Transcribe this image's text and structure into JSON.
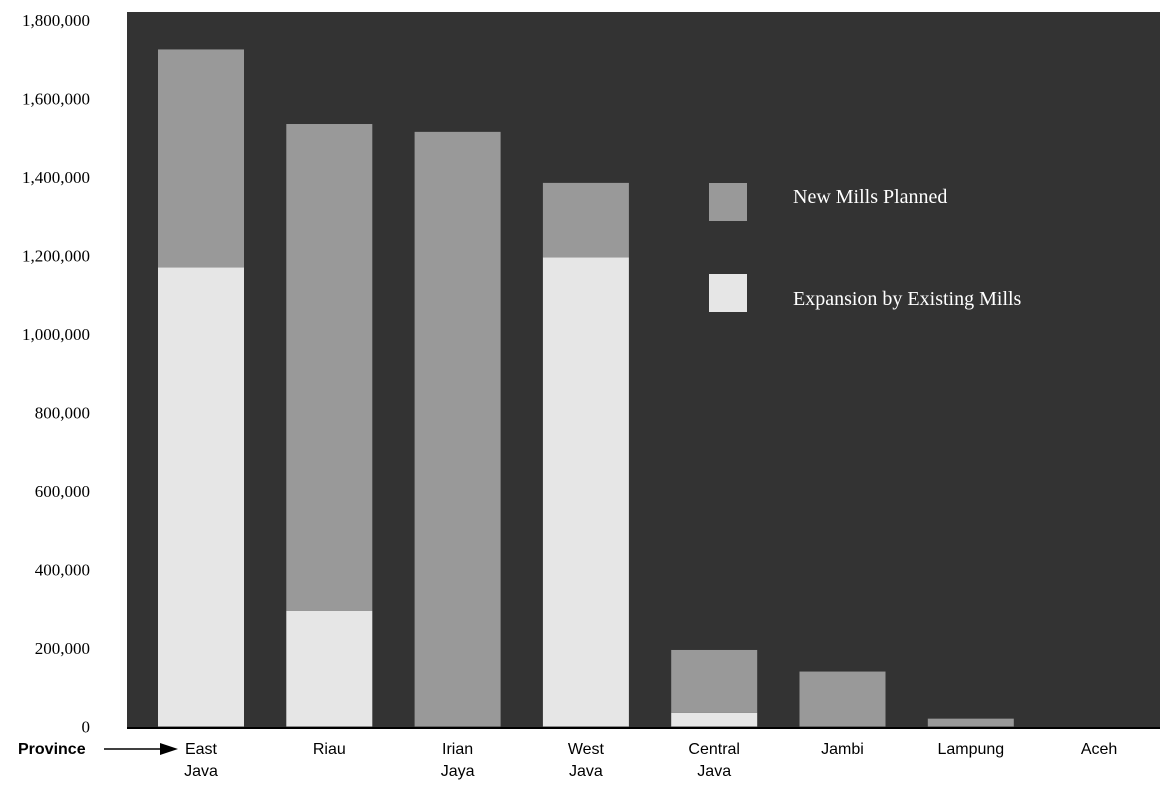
{
  "colors": {
    "plot_background": "#333333",
    "new_mills": "#999999",
    "expansion": "#e6e6e6",
    "legend_text": "#ffffff",
    "axis_text": "#000000"
  },
  "chart_data": {
    "type": "bar",
    "stacked": true,
    "categories": [
      [
        "East",
        "Java"
      ],
      [
        "Riau"
      ],
      [
        "Irian",
        "Jaya"
      ],
      [
        "West",
        "Java"
      ],
      [
        "Central",
        "Java"
      ],
      [
        "Jambi"
      ],
      [
        "Lampung"
      ],
      [
        "Aceh"
      ]
    ],
    "series": [
      {
        "name": "Expansion by Existing Mills",
        "color": "#e6e6e6",
        "values": [
          1170000,
          295000,
          0,
          1195000,
          35000,
          0,
          0,
          0
        ]
      },
      {
        "name": "New Mills Planned",
        "color": "#999999",
        "values": [
          555000,
          1240000,
          1515000,
          190000,
          160000,
          140000,
          20000,
          0
        ]
      }
    ],
    "ylim": [
      0,
      1800000
    ],
    "yticks": [
      0,
      200000,
      400000,
      600000,
      800000,
      1000000,
      1200000,
      1400000,
      1600000,
      1800000
    ],
    "ytick_labels": [
      "0",
      "200,000",
      "400,000",
      "600,000",
      "800,000",
      "1,000,000",
      "1,200,000",
      "1,400,000",
      "1,600,000",
      "1,800,000"
    ],
    "legend_placement": "top-right",
    "grid": false
  },
  "annotations": {
    "province_label": "Province"
  }
}
